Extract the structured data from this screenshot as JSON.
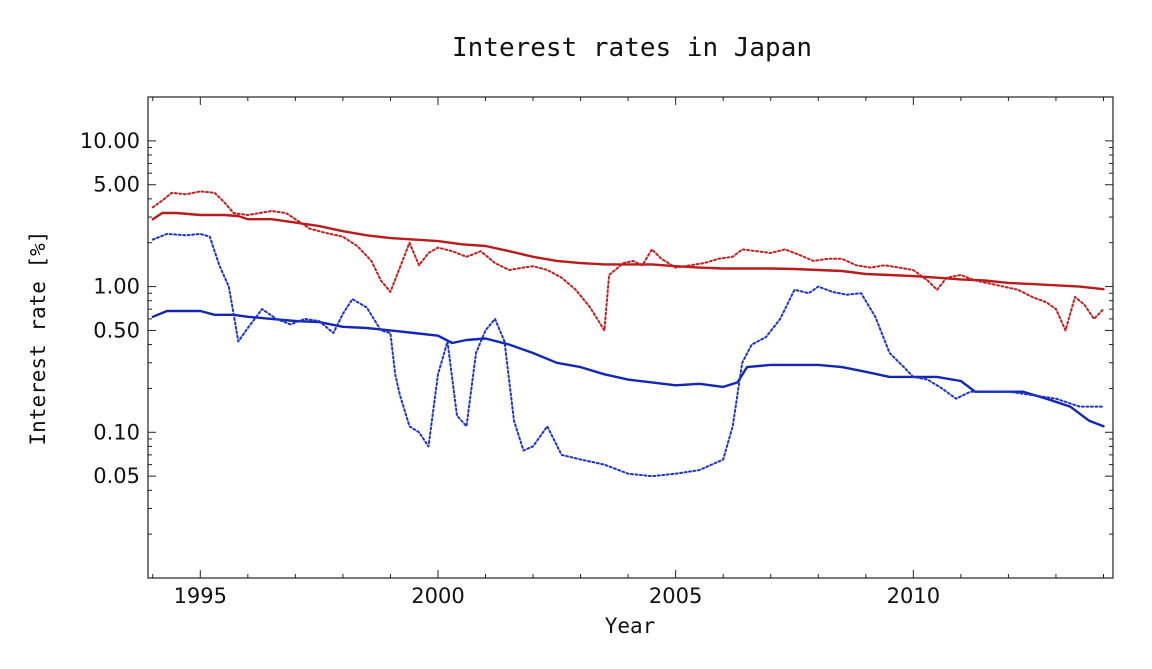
{
  "chart_data": {
    "type": "line",
    "title": "Interest rates in Japan",
    "xlabel": "Year",
    "ylabel": "Interest rate [%]",
    "y_scale": "log",
    "xlim": [
      1993.9,
      2014.2
    ],
    "ylim": [
      0.01,
      20
    ],
    "grid": false,
    "x_ticks": [
      {
        "value": 1995,
        "label": "1995"
      },
      {
        "value": 2000,
        "label": "2000"
      },
      {
        "value": 2005,
        "label": "2005"
      },
      {
        "value": 2010,
        "label": "2010"
      }
    ],
    "y_ticks": [
      {
        "value": 0.05,
        "label": "0.05"
      },
      {
        "value": 0.1,
        "label": "0.10"
      },
      {
        "value": 0.5,
        "label": "0.50"
      },
      {
        "value": 1,
        "label": "1.00"
      },
      {
        "value": 5,
        "label": "5.00"
      },
      {
        "value": 10,
        "label": "10.00"
      }
    ],
    "series": [
      {
        "color": "#b81c1c",
        "style": "solid",
        "points": [
          [
            1994.0,
            2.9
          ],
          [
            1994.2,
            3.2
          ],
          [
            1994.5,
            3.2
          ],
          [
            1995.0,
            3.1
          ],
          [
            1995.5,
            3.1
          ],
          [
            1995.8,
            3.05
          ],
          [
            1996.0,
            2.9
          ],
          [
            1996.5,
            2.9
          ],
          [
            1997.0,
            2.75
          ],
          [
            1997.5,
            2.6
          ],
          [
            1998.0,
            2.4
          ],
          [
            1998.5,
            2.25
          ],
          [
            1999.0,
            2.15
          ],
          [
            1999.5,
            2.1
          ],
          [
            2000.0,
            2.05
          ],
          [
            2000.5,
            1.95
          ],
          [
            2001.0,
            1.9
          ],
          [
            2001.5,
            1.75
          ],
          [
            2002.0,
            1.6
          ],
          [
            2002.5,
            1.5
          ],
          [
            2003.0,
            1.45
          ],
          [
            2003.5,
            1.42
          ],
          [
            2004.0,
            1.42
          ],
          [
            2004.5,
            1.42
          ],
          [
            2005.0,
            1.38
          ],
          [
            2005.5,
            1.35
          ],
          [
            2006.0,
            1.33
          ],
          [
            2006.5,
            1.33
          ],
          [
            2007.0,
            1.33
          ],
          [
            2007.5,
            1.32
          ],
          [
            2008.0,
            1.3
          ],
          [
            2008.5,
            1.28
          ],
          [
            2009.0,
            1.22
          ],
          [
            2009.5,
            1.2
          ],
          [
            2010.0,
            1.18
          ],
          [
            2010.5,
            1.15
          ],
          [
            2011.0,
            1.12
          ],
          [
            2011.5,
            1.1
          ],
          [
            2012.0,
            1.06
          ],
          [
            2012.5,
            1.04
          ],
          [
            2013.0,
            1.02
          ],
          [
            2013.5,
            1.0
          ],
          [
            2014.0,
            0.96
          ]
        ]
      },
      {
        "color": "#c41e1e",
        "style": "dotted",
        "points": [
          [
            1994.0,
            3.5
          ],
          [
            1994.2,
            3.9
          ],
          [
            1994.4,
            4.4
          ],
          [
            1994.7,
            4.3
          ],
          [
            1995.0,
            4.5
          ],
          [
            1995.3,
            4.4
          ],
          [
            1995.5,
            3.8
          ],
          [
            1995.7,
            3.2
          ],
          [
            1996.0,
            3.1
          ],
          [
            1996.5,
            3.3
          ],
          [
            1996.8,
            3.2
          ],
          [
            1997.0,
            2.9
          ],
          [
            1997.3,
            2.5
          ],
          [
            1997.6,
            2.35
          ],
          [
            1998.0,
            2.2
          ],
          [
            1998.3,
            1.9
          ],
          [
            1998.6,
            1.5
          ],
          [
            1998.8,
            1.1
          ],
          [
            1999.0,
            0.92
          ],
          [
            1999.2,
            1.35
          ],
          [
            1999.4,
            2.0
          ],
          [
            1999.6,
            1.4
          ],
          [
            1999.8,
            1.7
          ],
          [
            2000.0,
            1.85
          ],
          [
            2000.3,
            1.75
          ],
          [
            2000.6,
            1.6
          ],
          [
            2000.9,
            1.75
          ],
          [
            2001.2,
            1.45
          ],
          [
            2001.5,
            1.3
          ],
          [
            2001.8,
            1.35
          ],
          [
            2002.0,
            1.38
          ],
          [
            2002.3,
            1.3
          ],
          [
            2002.6,
            1.15
          ],
          [
            2002.9,
            0.95
          ],
          [
            2003.2,
            0.72
          ],
          [
            2003.5,
            0.5
          ],
          [
            2003.6,
            1.2
          ],
          [
            2003.9,
            1.45
          ],
          [
            2004.1,
            1.5
          ],
          [
            2004.3,
            1.4
          ],
          [
            2004.5,
            1.8
          ],
          [
            2004.7,
            1.55
          ],
          [
            2005.0,
            1.35
          ],
          [
            2005.3,
            1.4
          ],
          [
            2005.6,
            1.45
          ],
          [
            2005.9,
            1.55
          ],
          [
            2006.2,
            1.6
          ],
          [
            2006.4,
            1.8
          ],
          [
            2006.7,
            1.75
          ],
          [
            2007.0,
            1.7
          ],
          [
            2007.3,
            1.8
          ],
          [
            2007.6,
            1.65
          ],
          [
            2007.9,
            1.5
          ],
          [
            2008.2,
            1.55
          ],
          [
            2008.5,
            1.55
          ],
          [
            2008.8,
            1.4
          ],
          [
            2009.1,
            1.35
          ],
          [
            2009.4,
            1.4
          ],
          [
            2009.7,
            1.35
          ],
          [
            2010.0,
            1.3
          ],
          [
            2010.3,
            1.1
          ],
          [
            2010.5,
            0.95
          ],
          [
            2010.7,
            1.15
          ],
          [
            2011.0,
            1.2
          ],
          [
            2011.3,
            1.1
          ],
          [
            2011.6,
            1.05
          ],
          [
            2011.9,
            1.0
          ],
          [
            2012.2,
            0.95
          ],
          [
            2012.5,
            0.85
          ],
          [
            2012.8,
            0.78
          ],
          [
            2013.0,
            0.7
          ],
          [
            2013.2,
            0.5
          ],
          [
            2013.4,
            0.85
          ],
          [
            2013.6,
            0.75
          ],
          [
            2013.8,
            0.6
          ],
          [
            2014.0,
            0.7
          ]
        ]
      },
      {
        "color": "#1328b0",
        "style": "solid",
        "points": [
          [
            1994.0,
            0.62
          ],
          [
            1994.3,
            0.68
          ],
          [
            1994.7,
            0.68
          ],
          [
            1995.0,
            0.68
          ],
          [
            1995.3,
            0.64
          ],
          [
            1995.7,
            0.64
          ],
          [
            1996.0,
            0.62
          ],
          [
            1996.5,
            0.6
          ],
          [
            1997.0,
            0.58
          ],
          [
            1997.5,
            0.57
          ],
          [
            1998.0,
            0.53
          ],
          [
            1998.5,
            0.52
          ],
          [
            1999.0,
            0.5
          ],
          [
            1999.5,
            0.48
          ],
          [
            2000.0,
            0.46
          ],
          [
            2000.3,
            0.41
          ],
          [
            2000.6,
            0.43
          ],
          [
            2001.0,
            0.44
          ],
          [
            2001.5,
            0.4
          ],
          [
            2002.0,
            0.35
          ],
          [
            2002.5,
            0.3
          ],
          [
            2003.0,
            0.28
          ],
          [
            2003.5,
            0.25
          ],
          [
            2004.0,
            0.23
          ],
          [
            2004.5,
            0.22
          ],
          [
            2005.0,
            0.21
          ],
          [
            2005.5,
            0.215
          ],
          [
            2006.0,
            0.205
          ],
          [
            2006.3,
            0.22
          ],
          [
            2006.5,
            0.28
          ],
          [
            2007.0,
            0.29
          ],
          [
            2007.5,
            0.29
          ],
          [
            2008.0,
            0.29
          ],
          [
            2008.5,
            0.28
          ],
          [
            2009.0,
            0.26
          ],
          [
            2009.5,
            0.24
          ],
          [
            2010.0,
            0.24
          ],
          [
            2010.5,
            0.24
          ],
          [
            2011.0,
            0.225
          ],
          [
            2011.3,
            0.19
          ],
          [
            2011.8,
            0.19
          ],
          [
            2012.3,
            0.19
          ],
          [
            2012.8,
            0.17
          ],
          [
            2013.3,
            0.15
          ],
          [
            2013.7,
            0.12
          ],
          [
            2014.0,
            0.11
          ]
        ]
      },
      {
        "color": "#1d34c8",
        "style": "dotted",
        "points": [
          [
            1994.0,
            2.1
          ],
          [
            1994.3,
            2.3
          ],
          [
            1994.7,
            2.25
          ],
          [
            1995.0,
            2.3
          ],
          [
            1995.2,
            2.2
          ],
          [
            1995.4,
            1.4
          ],
          [
            1995.6,
            1.0
          ],
          [
            1995.7,
            0.65
          ],
          [
            1995.8,
            0.42
          ],
          [
            1996.0,
            0.52
          ],
          [
            1996.3,
            0.7
          ],
          [
            1996.6,
            0.6
          ],
          [
            1996.9,
            0.55
          ],
          [
            1997.2,
            0.6
          ],
          [
            1997.5,
            0.58
          ],
          [
            1997.8,
            0.48
          ],
          [
            1998.0,
            0.65
          ],
          [
            1998.2,
            0.82
          ],
          [
            1998.5,
            0.72
          ],
          [
            1998.8,
            0.5
          ],
          [
            1999.0,
            0.48
          ],
          [
            1999.1,
            0.25
          ],
          [
            1999.2,
            0.18
          ],
          [
            1999.4,
            0.11
          ],
          [
            1999.6,
            0.1
          ],
          [
            1999.8,
            0.08
          ],
          [
            2000.0,
            0.25
          ],
          [
            2000.2,
            0.42
          ],
          [
            2000.4,
            0.13
          ],
          [
            2000.6,
            0.11
          ],
          [
            2000.8,
            0.35
          ],
          [
            2001.0,
            0.5
          ],
          [
            2001.2,
            0.6
          ],
          [
            2001.4,
            0.42
          ],
          [
            2001.6,
            0.12
          ],
          [
            2001.8,
            0.075
          ],
          [
            2002.0,
            0.08
          ],
          [
            2002.3,
            0.11
          ],
          [
            2002.6,
            0.07
          ],
          [
            2003.0,
            0.065
          ],
          [
            2003.5,
            0.06
          ],
          [
            2004.0,
            0.052
          ],
          [
            2004.5,
            0.05
          ],
          [
            2005.0,
            0.052
          ],
          [
            2005.5,
            0.055
          ],
          [
            2006.0,
            0.065
          ],
          [
            2006.2,
            0.11
          ],
          [
            2006.4,
            0.3
          ],
          [
            2006.6,
            0.4
          ],
          [
            2006.9,
            0.45
          ],
          [
            2007.2,
            0.6
          ],
          [
            2007.5,
            0.95
          ],
          [
            2007.8,
            0.9
          ],
          [
            2008.0,
            1.0
          ],
          [
            2008.3,
            0.92
          ],
          [
            2008.6,
            0.88
          ],
          [
            2008.9,
            0.9
          ],
          [
            2009.2,
            0.62
          ],
          [
            2009.5,
            0.35
          ],
          [
            2009.8,
            0.28
          ],
          [
            2010.0,
            0.24
          ],
          [
            2010.3,
            0.23
          ],
          [
            2010.6,
            0.2
          ],
          [
            2010.9,
            0.17
          ],
          [
            2011.2,
            0.19
          ],
          [
            2011.6,
            0.19
          ],
          [
            2012.0,
            0.19
          ],
          [
            2012.5,
            0.18
          ],
          [
            2013.0,
            0.17
          ],
          [
            2013.5,
            0.15
          ],
          [
            2014.0,
            0.15
          ]
        ]
      }
    ]
  }
}
